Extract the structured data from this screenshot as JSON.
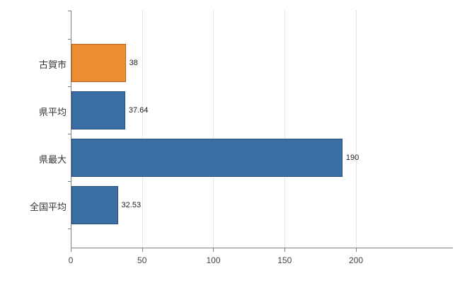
{
  "chart_data": {
    "type": "bar",
    "orientation": "horizontal",
    "title": "",
    "xlabel": "",
    "ylabel": "",
    "categories": [
      "古賀市",
      "県平均",
      "県最大",
      "全国平均"
    ],
    "values": [
      38,
      37.64,
      190,
      32.53
    ],
    "value_labels": [
      "38",
      "37.64",
      "190",
      "32.53"
    ],
    "x_ticks": [
      0,
      50,
      100,
      150,
      200
    ],
    "xlim": [
      0,
      268
    ],
    "bar_colors": [
      "#ed8d31",
      "#3a6ea5",
      "#3a6ea5",
      "#3a6ea5"
    ],
    "bar_border_colors": [
      "#b8641b",
      "#29517e",
      "#29517e",
      "#29517e"
    ],
    "grid": "vertical-dotted",
    "legend": "none",
    "axis_color": "#7f7f7f",
    "gridline_color": "#cfcfcf",
    "background_color": "#ffffff"
  }
}
